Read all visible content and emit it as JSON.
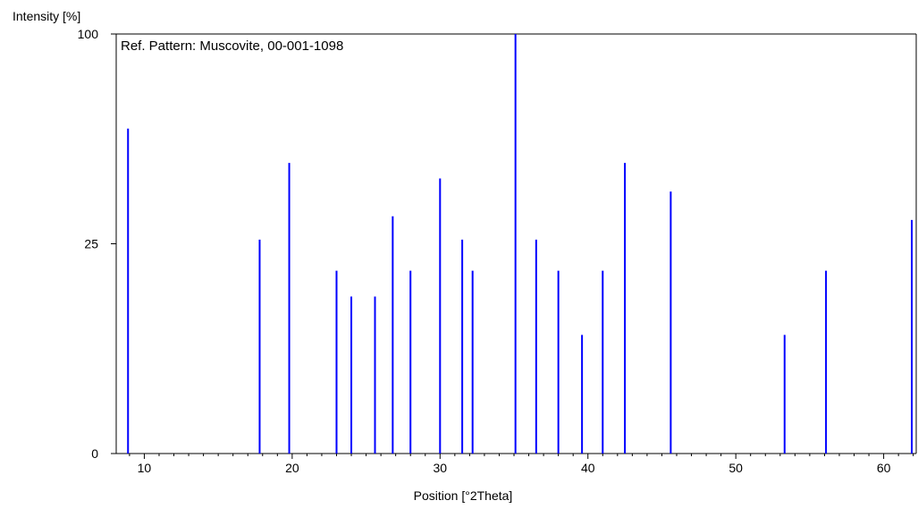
{
  "chart_data": {
    "type": "bar",
    "subtype": "stick-pattern",
    "title": "Ref. Pattern: Muscovite, 00-001-1098",
    "xlabel": "Position [°2Theta]",
    "ylabel": "Intensity [%]",
    "x_axis_scale": "linear",
    "y_axis_scale": "sqrt",
    "xlim": [
      8.1,
      62.2
    ],
    "ylim": [
      0,
      100
    ],
    "x_ticks": [
      10,
      20,
      30,
      40,
      50,
      60
    ],
    "y_ticks": [
      0,
      25,
      100
    ],
    "grid": false,
    "line_color": "#0000ff",
    "axis_color": "#000000",
    "series": [
      {
        "x": [
          8.9,
          17.8,
          19.8,
          23.0,
          24.0,
          25.6,
          26.8,
          28.0,
          30.0,
          31.5,
          32.2,
          35.1,
          36.5,
          38.0,
          39.6,
          41.0,
          42.5,
          45.6,
          53.3,
          56.1,
          61.9
        ],
        "y": [
          60,
          26,
          48,
          19,
          14,
          14,
          32,
          19,
          43,
          26,
          19,
          100,
          26,
          19,
          8,
          19,
          48,
          39,
          8,
          19,
          31
        ]
      }
    ]
  }
}
